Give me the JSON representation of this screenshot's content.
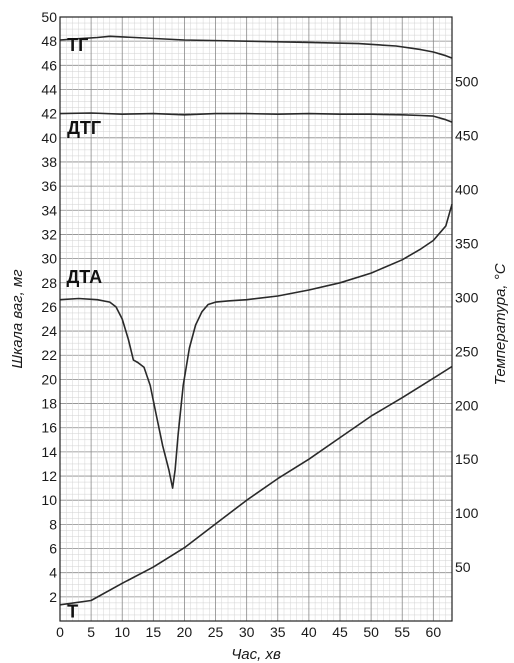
{
  "chart_data": {
    "type": "line",
    "xlabel": "Час, хв",
    "ylabel": "Шкала ваг, мг",
    "y2label": "Температура, °С",
    "xlim": [
      0,
      63
    ],
    "ylim": [
      0,
      50
    ],
    "y2lim": [
      0,
      560
    ],
    "x_ticks": [
      0,
      5,
      10,
      15,
      20,
      25,
      30,
      35,
      40,
      45,
      50,
      55,
      60
    ],
    "y_ticks": [
      2,
      4,
      6,
      8,
      10,
      12,
      14,
      16,
      18,
      20,
      22,
      24,
      26,
      28,
      30,
      32,
      34,
      36,
      38,
      40,
      42,
      44,
      46,
      48,
      50
    ],
    "y2_ticks": [
      50,
      100,
      150,
      200,
      250,
      300,
      350,
      400,
      450,
      500
    ],
    "grid": true,
    "series": [
      {
        "name": "ТГ",
        "axis": "left",
        "color": "#2a2a2a",
        "x": [
          0,
          3,
          6,
          8,
          12,
          20,
          30,
          40,
          48,
          54,
          58,
          60,
          62,
          63
        ],
        "y": [
          48.1,
          48.2,
          48.3,
          48.4,
          48.3,
          48.1,
          48.0,
          47.9,
          47.8,
          47.6,
          47.3,
          47.1,
          46.8,
          46.6
        ],
        "label_at": [
          0.5,
          47.2
        ]
      },
      {
        "name": "ДТГ",
        "axis": "left",
        "color": "#2a2a2a",
        "x": [
          0,
          5,
          10,
          15,
          20,
          25,
          30,
          35,
          40,
          45,
          50,
          55,
          58,
          60,
          62,
          63
        ],
        "y": [
          42.0,
          42.05,
          41.95,
          42.0,
          41.9,
          42.0,
          42.0,
          41.95,
          42.0,
          41.95,
          41.95,
          41.9,
          41.85,
          41.8,
          41.5,
          41.3
        ],
        "label_at": [
          0.5,
          40.3
        ]
      },
      {
        "name": "ДТА",
        "axis": "left",
        "color": "#2a2a2a",
        "x": [
          0,
          3,
          6,
          8,
          9,
          10,
          11,
          11.8,
          12.5,
          13.5,
          14.5,
          15.5,
          16.5,
          17.5,
          18.1,
          18.5,
          19,
          19.8,
          20.8,
          21.8,
          22.8,
          23.8,
          25,
          27,
          30,
          35,
          40,
          45,
          50,
          55,
          58,
          60,
          61,
          62,
          63
        ],
        "y": [
          26.6,
          26.7,
          26.6,
          26.4,
          26.0,
          25.0,
          23.3,
          21.6,
          21.4,
          21.0,
          19.5,
          17.0,
          14.5,
          12.5,
          11.0,
          12.5,
          15.5,
          19.5,
          22.6,
          24.5,
          25.6,
          26.2,
          26.4,
          26.5,
          26.6,
          26.9,
          27.4,
          28.0,
          28.8,
          29.9,
          30.8,
          31.5,
          32.1,
          32.7,
          34.5
        ],
        "label_at": [
          0.4,
          28.0
        ]
      },
      {
        "name": "T",
        "axis": "right",
        "color": "#2a2a2a",
        "x": [
          0,
          5,
          10,
          15,
          20,
          25,
          30,
          35,
          40,
          45,
          50,
          55,
          60,
          63
        ],
        "y": [
          15,
          19,
          35,
          50,
          68,
          90,
          112,
          132,
          150,
          170,
          190,
          207,
          225,
          236
        ],
        "label_at": [
          0.5,
          0.3
        ]
      }
    ]
  }
}
